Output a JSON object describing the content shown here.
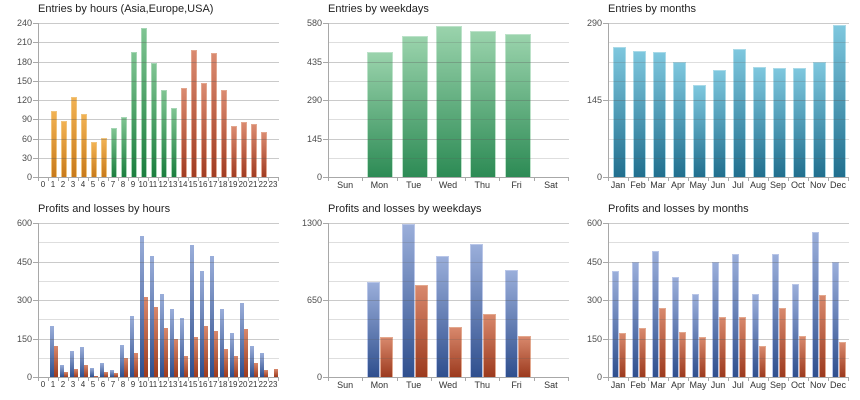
{
  "palette": {
    "asia_orange": {
      "top": "#f2b253",
      "bottom": "#c87a1b",
      "border": "#f0c47c"
    },
    "europe_green": {
      "top": "#7fc492",
      "bottom": "#1a7e3e",
      "border": "#a5d6b4"
    },
    "usa_red": {
      "top": "#da8a70",
      "bottom": "#a13c22",
      "border": "#e3a78f"
    },
    "weekday_green": {
      "top": "#9ad3ac",
      "bottom": "#2d8b55",
      "border": "#bce2c9"
    },
    "month_blue": {
      "top": "#7ec7de",
      "bottom": "#216f8e",
      "border": "#a9dae8"
    },
    "profit_blue": {
      "top": "#9aaeda",
      "bottom": "#2f4f8e",
      "border": "#b9c6e8"
    },
    "loss_red": {
      "top": "#d8886c",
      "bottom": "#9c3a1e",
      "border": "#e3a88e"
    },
    "axis_line": "#a8a8a8",
    "grid_major": "#c2c2c2",
    "grid_minor": "#d6d6d6",
    "title_text": "#1f1f1f",
    "axis_text": "#4d4d4d"
  },
  "chart_data": [
    {
      "id": "entries-by-hours",
      "type": "bar",
      "title": "Entries by hours (Asia,Europe,USA)",
      "categories": [
        "0",
        "1",
        "2",
        "3",
        "4",
        "5",
        "6",
        "7",
        "8",
        "9",
        "10",
        "11",
        "12",
        "13",
        "14",
        "15",
        "16",
        "17",
        "18",
        "19",
        "20",
        "21",
        "22",
        "23"
      ],
      "series": [
        {
          "name": "Entries",
          "values": [
            0,
            103,
            87,
            124,
            98,
            55,
            61,
            77,
            93,
            195,
            232,
            177,
            135,
            108,
            139,
            198,
            146,
            194,
            136,
            79,
            86,
            82,
            70,
            0
          ],
          "palette_by_category": [
            "asia_orange",
            "asia_orange",
            "asia_orange",
            "asia_orange",
            "asia_orange",
            "asia_orange",
            "asia_orange",
            "europe_green",
            "europe_green",
            "europe_green",
            "europe_green",
            "europe_green",
            "europe_green",
            "europe_green",
            "usa_red",
            "usa_red",
            "usa_red",
            "usa_red",
            "usa_red",
            "usa_red",
            "usa_red",
            "usa_red",
            "usa_red",
            "usa_red"
          ]
        }
      ],
      "y_axis": {
        "min": 0,
        "max": 240,
        "labels": [
          0,
          30,
          60,
          90,
          120,
          150,
          180,
          210,
          240
        ],
        "grid_step": 30
      },
      "grid": true,
      "legend": "none"
    },
    {
      "id": "entries-by-weekdays",
      "type": "bar",
      "title": "Entries by weekdays",
      "categories": [
        "Sun",
        "Mon",
        "Tue",
        "Wed",
        "Thu",
        "Fri",
        "Sat"
      ],
      "series": [
        {
          "name": "Entries",
          "palette": "weekday_green",
          "values": [
            0,
            470,
            530,
            570,
            550,
            540,
            0
          ]
        }
      ],
      "y_axis": {
        "min": 0,
        "max": 580,
        "labels": [
          0,
          145,
          290,
          435,
          580
        ],
        "grid_step": 72.5
      },
      "grid": true,
      "legend": "none"
    },
    {
      "id": "entries-by-months",
      "type": "bar",
      "title": "Entries by months",
      "categories": [
        "Jan",
        "Feb",
        "Mar",
        "Apr",
        "May",
        "Jun",
        "Jul",
        "Aug",
        "Sep",
        "Oct",
        "Nov",
        "Dec"
      ],
      "series": [
        {
          "name": "Entries",
          "palette": "month_blue",
          "values": [
            245,
            237,
            235,
            217,
            173,
            201,
            242,
            208,
            206,
            205,
            216,
            287
          ]
        }
      ],
      "y_axis": {
        "min": 0,
        "max": 290,
        "labels": [
          0,
          145,
          290
        ],
        "grid_step": 36.25
      },
      "grid": true,
      "legend": "none"
    },
    {
      "id": "profits-losses-by-hours",
      "type": "bar",
      "title": "Profits and losses by hours",
      "categories": [
        "0",
        "1",
        "2",
        "3",
        "4",
        "5",
        "6",
        "7",
        "8",
        "9",
        "10",
        "11",
        "12",
        "13",
        "14",
        "15",
        "16",
        "17",
        "18",
        "19",
        "20",
        "21",
        "22",
        "23"
      ],
      "series": [
        {
          "name": "Profits",
          "palette": "profit_blue",
          "values": [
            0,
            200,
            48,
            101,
            117,
            37,
            55,
            29,
            125,
            238,
            550,
            470,
            325,
            265,
            230,
            515,
            413,
            470,
            265,
            170,
            290,
            121,
            95,
            0
          ]
        },
        {
          "name": "Losses",
          "palette": "loss_red",
          "values": [
            0,
            122,
            18,
            33,
            45,
            5,
            19,
            15,
            75,
            92,
            313,
            274,
            190,
            150,
            83,
            156,
            199,
            179,
            110,
            83,
            186,
            53,
            26,
            32
          ]
        }
      ],
      "y_axis": {
        "min": 0,
        "max": 600,
        "labels": [
          0,
          150,
          300,
          450,
          600
        ],
        "grid_step": 75
      },
      "grid": true,
      "legend": "none"
    },
    {
      "id": "profits-losses-by-weekdays",
      "type": "bar",
      "title": "Profits and losses by weekdays",
      "categories": [
        "Sun",
        "Mon",
        "Tue",
        "Wed",
        "Thu",
        "Fri",
        "Sat"
      ],
      "series": [
        {
          "name": "Profits",
          "palette": "profit_blue",
          "values": [
            0,
            800,
            1295,
            1020,
            1125,
            905,
            0
          ]
        },
        {
          "name": "Losses",
          "palette": "loss_red",
          "values": [
            0,
            340,
            775,
            420,
            530,
            345,
            0
          ]
        }
      ],
      "y_axis": {
        "min": 0,
        "max": 1300,
        "labels": [
          0,
          650,
          1300
        ],
        "grid_step": 162.5
      },
      "grid": true,
      "legend": "none"
    },
    {
      "id": "profits-losses-by-months",
      "type": "bar",
      "title": "Profits and losses by months",
      "categories": [
        "Jan",
        "Feb",
        "Mar",
        "Apr",
        "May",
        "Jun",
        "Jul",
        "Aug",
        "Sep",
        "Oct",
        "Nov",
        "Dec"
      ],
      "series": [
        {
          "name": "Profits",
          "palette": "profit_blue",
          "values": [
            412,
            448,
            491,
            390,
            322,
            449,
            481,
            323,
            479,
            361,
            565,
            449
          ]
        },
        {
          "name": "Losses",
          "palette": "loss_red",
          "values": [
            173,
            192,
            270,
            177,
            155,
            235,
            233,
            121,
            268,
            158,
            320,
            137
          ]
        }
      ],
      "y_axis": {
        "min": 0,
        "max": 600,
        "labels": [
          0,
          150,
          300,
          450,
          600
        ],
        "grid_step": 75
      },
      "grid": true,
      "legend": "none"
    }
  ]
}
